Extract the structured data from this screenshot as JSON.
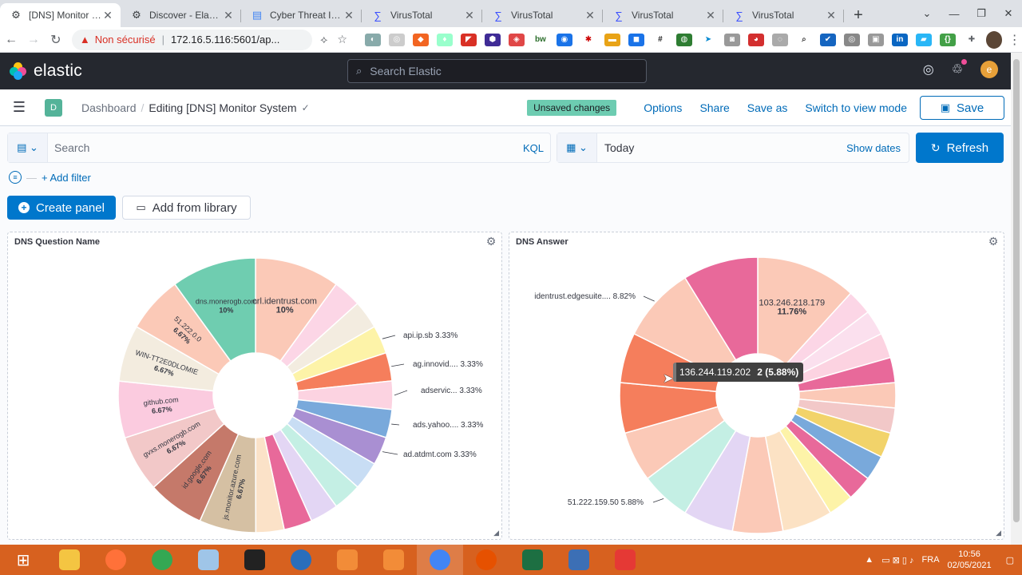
{
  "browser": {
    "tabs": [
      {
        "title": "[DNS] Monitor Sys",
        "icon": "kibana-tab-icon",
        "active": true
      },
      {
        "title": "Discover - Elastic",
        "icon": "kibana-tab-icon",
        "active": false
      },
      {
        "title": "Cyber Threat Intel",
        "icon": "docs-tab-icon",
        "active": false
      },
      {
        "title": "VirusTotal",
        "icon": "virustotal-tab-icon",
        "active": false
      },
      {
        "title": "VirusTotal",
        "icon": "virustotal-tab-icon",
        "active": false
      },
      {
        "title": "VirusTotal",
        "icon": "virustotal-tab-icon",
        "active": false
      },
      {
        "title": "VirusTotal",
        "icon": "virustotal-tab-icon",
        "active": false
      }
    ],
    "insecure_label": "Non sécurisé",
    "url": "172.16.5.116:5601/ap..."
  },
  "kibana": {
    "brand": "elastic",
    "search_placeholder": "Search Elastic",
    "space_initial": "D",
    "avatar_initial": "e",
    "breadcrumb_root": "Dashboard",
    "breadcrumb_current": "Editing [DNS] Monitor System",
    "unsaved_badge": "Unsaved changes",
    "actions": {
      "options": "Options",
      "share": "Share",
      "save_as": "Save as",
      "switch_view": "Switch to view mode",
      "save": "Save"
    },
    "query": {
      "placeholder": "Search",
      "language": "KQL",
      "date": "Today",
      "show_dates": "Show dates",
      "refresh": "Refresh"
    },
    "add_filter": "+ Add filter",
    "create_panel": "Create panel",
    "add_from_library": "Add from library"
  },
  "tooltip": {
    "label": "136.244.119.202",
    "value": "2 (5.88%)"
  },
  "chart_data": [
    {
      "type": "pie",
      "donut": true,
      "title": "DNS Question Name",
      "slices": [
        {
          "label": "crl.identrust.com",
          "percent": 10,
          "color": "#fbc9b7"
        },
        {
          "label": "",
          "percent": 3.33,
          "color": "#fcd6e6"
        },
        {
          "label": "",
          "percent": 3.33,
          "color": "#f3ece0"
        },
        {
          "label": "api.ip.sb",
          "percent": 3.33,
          "color": "#fdf3a8"
        },
        {
          "label": "ag.innovid....",
          "percent": 3.33,
          "color": "#f57e5c"
        },
        {
          "label": "adservic...",
          "percent": 3.33,
          "color": "#fcd3e1"
        },
        {
          "label": "ads.yahoo....",
          "percent": 3.33,
          "color": "#79a9db"
        },
        {
          "label": "ad.atdmt.com",
          "percent": 3.33,
          "color": "#a98fd2"
        },
        {
          "label": "",
          "percent": 3.33,
          "color": "#c8ddf4"
        },
        {
          "label": "",
          "percent": 3.33,
          "color": "#c4efe4"
        },
        {
          "label": "",
          "percent": 3.33,
          "color": "#e3d6f4"
        },
        {
          "label": "",
          "percent": 3.33,
          "color": "#e8699a"
        },
        {
          "label": "",
          "percent": 3.33,
          "color": "#fbe2c8"
        },
        {
          "label": "js.monitor.azure.com",
          "percent": 6.67,
          "color": "#d5c0a3"
        },
        {
          "label": "id.google.com",
          "percent": 6.67,
          "color": "#c5796a"
        },
        {
          "label": "gvxs.monerogb.com",
          "percent": 6.67,
          "color": "#f2c8c8"
        },
        {
          "label": "github.com",
          "percent": 6.67,
          "color": "#fbcbdf"
        },
        {
          "label": "WIN-TT2E0DLOMIE",
          "percent": 6.67,
          "color": "#f3ecdf"
        },
        {
          "label": "51.222.0.0",
          "percent": 6.67,
          "color": "#fbc9b7"
        },
        {
          "label": "dns.monerogb.com",
          "percent": 10,
          "color": "#6fcdb0"
        }
      ]
    },
    {
      "type": "pie",
      "donut": true,
      "title": "DNS Answer",
      "slices": [
        {
          "label": "103.246.218.179",
          "percent": 11.76,
          "color": "#fbc9b7"
        },
        {
          "label": "",
          "percent": 2.94,
          "color": "#fcd6e6"
        },
        {
          "label": "",
          "percent": 2.94,
          "color": "#fbe0ee"
        },
        {
          "label": "",
          "percent": 2.94,
          "color": "#fcd3e1"
        },
        {
          "label": "",
          "percent": 2.94,
          "color": "#e8699a"
        },
        {
          "label": "",
          "percent": 2.94,
          "color": "#fbc9b7"
        },
        {
          "label": "",
          "percent": 2.94,
          "color": "#f2c8c8"
        },
        {
          "label": "",
          "percent": 2.94,
          "color": "#f2d36a"
        },
        {
          "label": "",
          "percent": 2.94,
          "color": "#79a9db"
        },
        {
          "label": "",
          "percent": 2.94,
          "color": "#e8699a"
        },
        {
          "label": "",
          "percent": 2.94,
          "color": "#fdf3a8"
        },
        {
          "label": "",
          "percent": 5.88,
          "color": "#fce2c4"
        },
        {
          "label": "",
          "percent": 5.88,
          "color": "#fbc9b7"
        },
        {
          "label": "",
          "percent": 5.88,
          "color": "#e3d6f4"
        },
        {
          "label": "51.222.159.50",
          "percent": 5.88,
          "color": "#c4efe4"
        },
        {
          "label": "",
          "percent": 5.88,
          "color": "#fbc9b7"
        },
        {
          "label": "136.244.119.202",
          "percent": 5.88,
          "color": "#f57e5c"
        },
        {
          "label": "",
          "percent": 5.88,
          "color": "#f57e5c"
        },
        {
          "label": "identrust.edgesuite....",
          "percent": 8.82,
          "color": "#fbc9b7"
        },
        {
          "label": "",
          "percent": 8.82,
          "color": "#e8699a"
        }
      ]
    }
  ],
  "taskbar": {
    "lang": "FRA",
    "time": "10:56",
    "date": "02/05/2021"
  }
}
